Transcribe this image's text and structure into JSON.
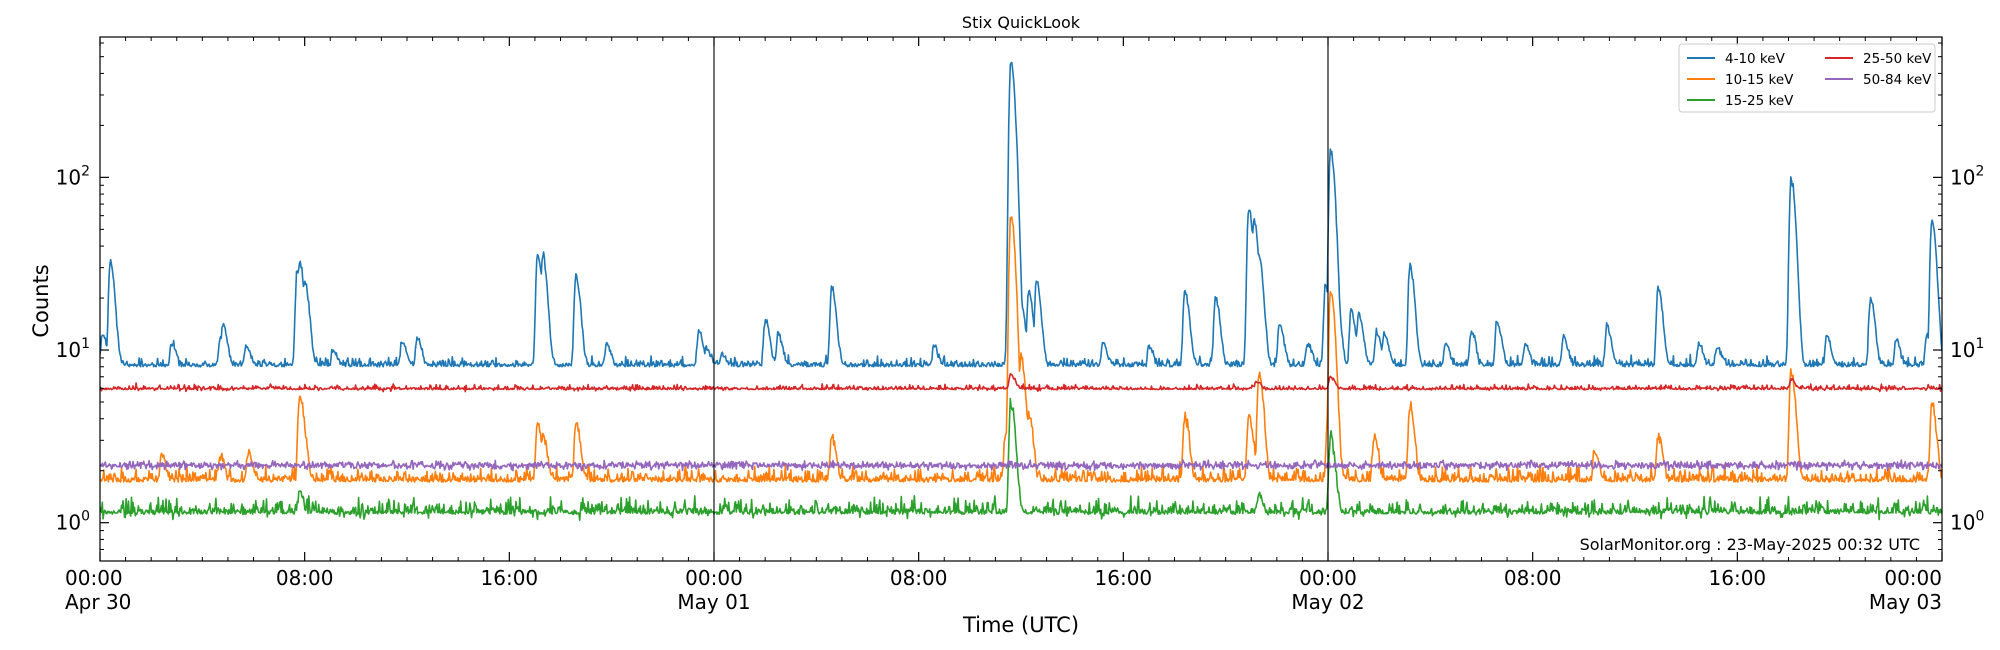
{
  "chart_data": {
    "type": "line",
    "title": "Stix QuickLook",
    "xlabel": "Time (UTC)",
    "ylabel": "Counts",
    "yscale": "log",
    "ylim": [
      0.6,
      650
    ],
    "xlim_hours": [
      0,
      72
    ],
    "grid": false,
    "legend_position": "top-right",
    "yticks": [
      {
        "value": 1,
        "base": "10",
        "exp": "0"
      },
      {
        "value": 10,
        "base": "10",
        "exp": "1"
      },
      {
        "value": 100,
        "base": "10",
        "exp": "2"
      }
    ],
    "xticks": [
      {
        "hour": 0,
        "time": "00:00",
        "date": "Apr 30"
      },
      {
        "hour": 8,
        "time": "08:00",
        "date": ""
      },
      {
        "hour": 16,
        "time": "16:00",
        "date": ""
      },
      {
        "hour": 24,
        "time": "00:00",
        "date": "May 01"
      },
      {
        "hour": 32,
        "time": "08:00",
        "date": ""
      },
      {
        "hour": 40,
        "time": "16:00",
        "date": ""
      },
      {
        "hour": 48,
        "time": "00:00",
        "date": "May 02"
      },
      {
        "hour": 56,
        "time": "08:00",
        "date": ""
      },
      {
        "hour": 64,
        "time": "16:00",
        "date": ""
      },
      {
        "hour": 72,
        "time": "00:00",
        "date": "May 03"
      }
    ],
    "day_boundaries_hours": [
      24,
      48
    ],
    "annotation": "SolarMonitor.org : 23-May-2025 00:32 UTC",
    "series": [
      {
        "name": "4-10 keV",
        "color": "#1f77b4",
        "baseline": 8.0,
        "peaks": [
          [
            0.1,
            12.5
          ],
          [
            0.4,
            32
          ],
          [
            2.8,
            11
          ],
          [
            4.7,
            11.5
          ],
          [
            4.8,
            14
          ],
          [
            5.7,
            10.5
          ],
          [
            7.7,
            28
          ],
          [
            7.8,
            32
          ],
          [
            8.0,
            25
          ],
          [
            9.1,
            10
          ],
          [
            11.8,
            11.2
          ],
          [
            12.4,
            11.7
          ],
          [
            17.1,
            36
          ],
          [
            17.3,
            36
          ],
          [
            18.6,
            27
          ],
          [
            19.8,
            10.8
          ],
          [
            23.4,
            13
          ],
          [
            23.7,
            10.5
          ],
          [
            24.3,
            9.5
          ],
          [
            26.0,
            15
          ],
          [
            26.5,
            12.5
          ],
          [
            28.6,
            23
          ],
          [
            32.6,
            10.5
          ],
          [
            35.5,
            11
          ],
          [
            35.6,
            460
          ],
          [
            35.8,
            30
          ],
          [
            36.0,
            18
          ],
          [
            36.3,
            22
          ],
          [
            36.6,
            25
          ],
          [
            39.2,
            11
          ],
          [
            41.0,
            10.5
          ],
          [
            42.4,
            22
          ],
          [
            43.6,
            20
          ],
          [
            44.9,
            65
          ],
          [
            45.1,
            58
          ],
          [
            45.3,
            35
          ],
          [
            46.1,
            14
          ],
          [
            47.2,
            11
          ],
          [
            47.9,
            24
          ],
          [
            48.1,
            145
          ],
          [
            48.3,
            22
          ],
          [
            48.9,
            17
          ],
          [
            49.2,
            16
          ],
          [
            49.9,
            13
          ],
          [
            50.2,
            12.5
          ],
          [
            51.2,
            31
          ],
          [
            52.6,
            11
          ],
          [
            53.6,
            13
          ],
          [
            54.6,
            15
          ],
          [
            55.7,
            11
          ],
          [
            57.2,
            12
          ],
          [
            58.9,
            14
          ],
          [
            60.9,
            23
          ],
          [
            62.5,
            11
          ],
          [
            63.2,
            10.5
          ],
          [
            66.1,
            98
          ],
          [
            67.5,
            12
          ],
          [
            69.2,
            20
          ],
          [
            70.2,
            11.5
          ],
          [
            71.4,
            12
          ],
          [
            71.6,
            57
          ],
          [
            71.9,
            9.5
          ]
        ]
      },
      {
        "name": "10-15 keV",
        "color": "#ff7f0e",
        "baseline": 1.72,
        "peaks": [
          [
            2.4,
            2.5
          ],
          [
            4.7,
            2.5
          ],
          [
            5.8,
            2.6
          ],
          [
            7.8,
            5.5
          ],
          [
            7.9,
            3.8
          ],
          [
            17.1,
            3.8
          ],
          [
            17.3,
            3.2
          ],
          [
            18.6,
            3.8
          ],
          [
            28.6,
            3.2
          ],
          [
            35.4,
            3.3
          ],
          [
            35.6,
            60
          ],
          [
            36.0,
            9
          ],
          [
            36.3,
            4.2
          ],
          [
            42.4,
            4.2
          ],
          [
            44.9,
            4.2
          ],
          [
            45.3,
            7.5
          ],
          [
            48.0,
            4.5
          ],
          [
            48.1,
            22
          ],
          [
            49.8,
            3.2
          ],
          [
            51.2,
            4.8
          ],
          [
            58.4,
            2.6
          ],
          [
            60.9,
            3.2
          ],
          [
            66.1,
            7.5
          ],
          [
            71.6,
            4.8
          ]
        ]
      },
      {
        "name": "15-25 keV",
        "color": "#2ca02c",
        "baseline": 1.12,
        "peaks": [
          [
            35.6,
            5.0
          ],
          [
            48.1,
            3.2
          ],
          [
            7.8,
            1.5
          ],
          [
            45.3,
            1.5
          ]
        ]
      },
      {
        "name": "25-50 keV",
        "color": "#d62728",
        "baseline": 5.9,
        "peaks": [
          [
            35.6,
            7.2
          ],
          [
            48.1,
            7.0
          ],
          [
            66.1,
            6.8
          ],
          [
            45.2,
            6.6
          ]
        ]
      },
      {
        "name": "50-84 keV",
        "color": "#9467bd",
        "baseline": 2.15,
        "peaks": []
      }
    ]
  }
}
